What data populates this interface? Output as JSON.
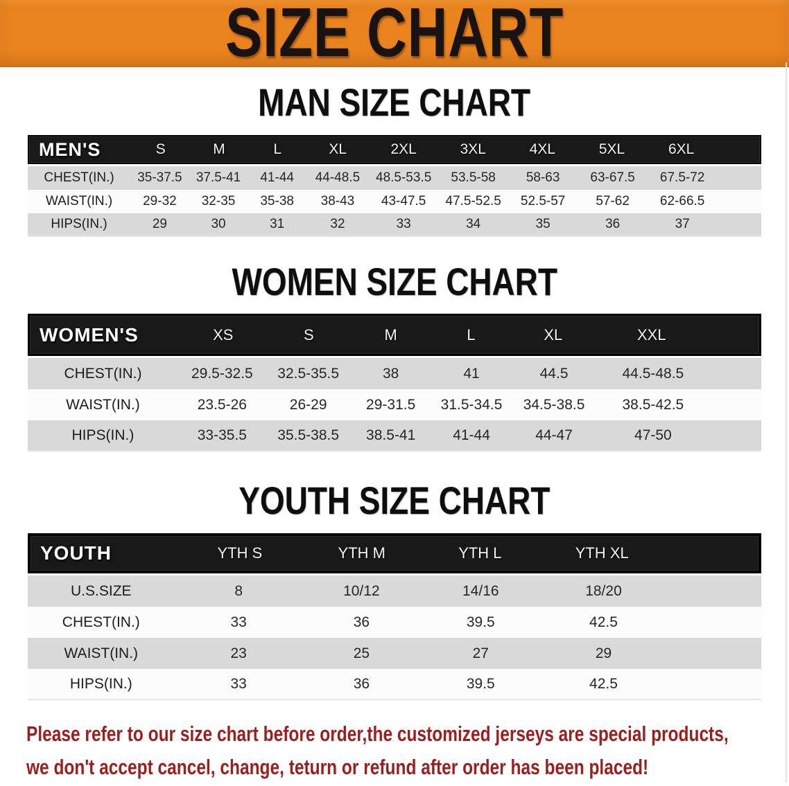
{
  "banner": {
    "title": "SIZE CHART",
    "bg_color": "#E8831E",
    "text_color": "#181210"
  },
  "sections": [
    {
      "id": "men",
      "heading": "MAN SIZE CHART",
      "table": {
        "label": "MEN'S",
        "columns": [
          "S",
          "M",
          "L",
          "XL",
          "2XL",
          "3XL",
          "4XL",
          "5XL",
          "6XL"
        ],
        "rows": [
          {
            "label": "CHEST(IN.)",
            "values": [
              "35-37.5",
              "37.5-41",
              "41-44",
              "44-48.5",
              "48.5-53.5",
              "53.5-58",
              "58-63",
              "63-67.5",
              "67.5-72"
            ]
          },
          {
            "label": "WAIST(IN.)",
            "values": [
              "29-32",
              "32-35",
              "35-38",
              "38-43",
              "43-47.5",
              "47.5-52.5",
              "52.5-57",
              "57-62",
              "62-66.5"
            ]
          },
          {
            "label": "HIPS(IN.)",
            "values": [
              "29",
              "30",
              "31",
              "32",
              "33",
              "34",
              "35",
              "36",
              "37"
            ]
          }
        ]
      }
    },
    {
      "id": "women",
      "heading": "WOMEN SIZE CHART",
      "table": {
        "label": "WOMEN'S",
        "columns": [
          "XS",
          "S",
          "M",
          "L",
          "XL",
          "XXL"
        ],
        "rows": [
          {
            "label": "CHEST(IN.)",
            "values": [
              "29.5-32.5",
              "32.5-35.5",
              "38",
              "41",
              "44.5",
              "44.5-48.5"
            ]
          },
          {
            "label": "WAIST(IN.)",
            "values": [
              "23.5-26",
              "26-29",
              "29-31.5",
              "31.5-34.5",
              "34.5-38.5",
              "38.5-42.5"
            ]
          },
          {
            "label": "HIPS(IN.)",
            "values": [
              "33-35.5",
              "35.5-38.5",
              "38.5-41",
              "41-44",
              "44-47",
              "47-50"
            ]
          }
        ]
      }
    },
    {
      "id": "youth",
      "heading": "YOUTH SIZE CHART",
      "table": {
        "label": "YOUTH",
        "columns": [
          "YTH S",
          "YTH M",
          "YTH L",
          "YTH XL"
        ],
        "rows": [
          {
            "label": "U.S.SIZE",
            "values": [
              "8",
              "10/12",
              "14/16",
              "18/20"
            ]
          },
          {
            "label": "CHEST(IN.)",
            "values": [
              "33",
              "36",
              "39.5",
              "42.5"
            ]
          },
          {
            "label": "WAIST(IN.)",
            "values": [
              "23",
              "25",
              "27",
              "29"
            ]
          },
          {
            "label": "HIPS(IN.)",
            "values": [
              "33",
              "36",
              "39.5",
              "42.5"
            ]
          }
        ]
      }
    }
  ],
  "footnote": {
    "line1": "Please refer to our size chart before order,the customized jerseys are special products,",
    "line2": "we don't accept cancel, change, teturn or refund after order has been placed!",
    "color": "#9C1E1D"
  },
  "colors": {
    "banner_orange": "#E8831E",
    "header_bar": "#191919",
    "row_shade": "#D9D9D9",
    "row_light": "#FCFCFC",
    "footnote_red": "#9C1E1D"
  }
}
